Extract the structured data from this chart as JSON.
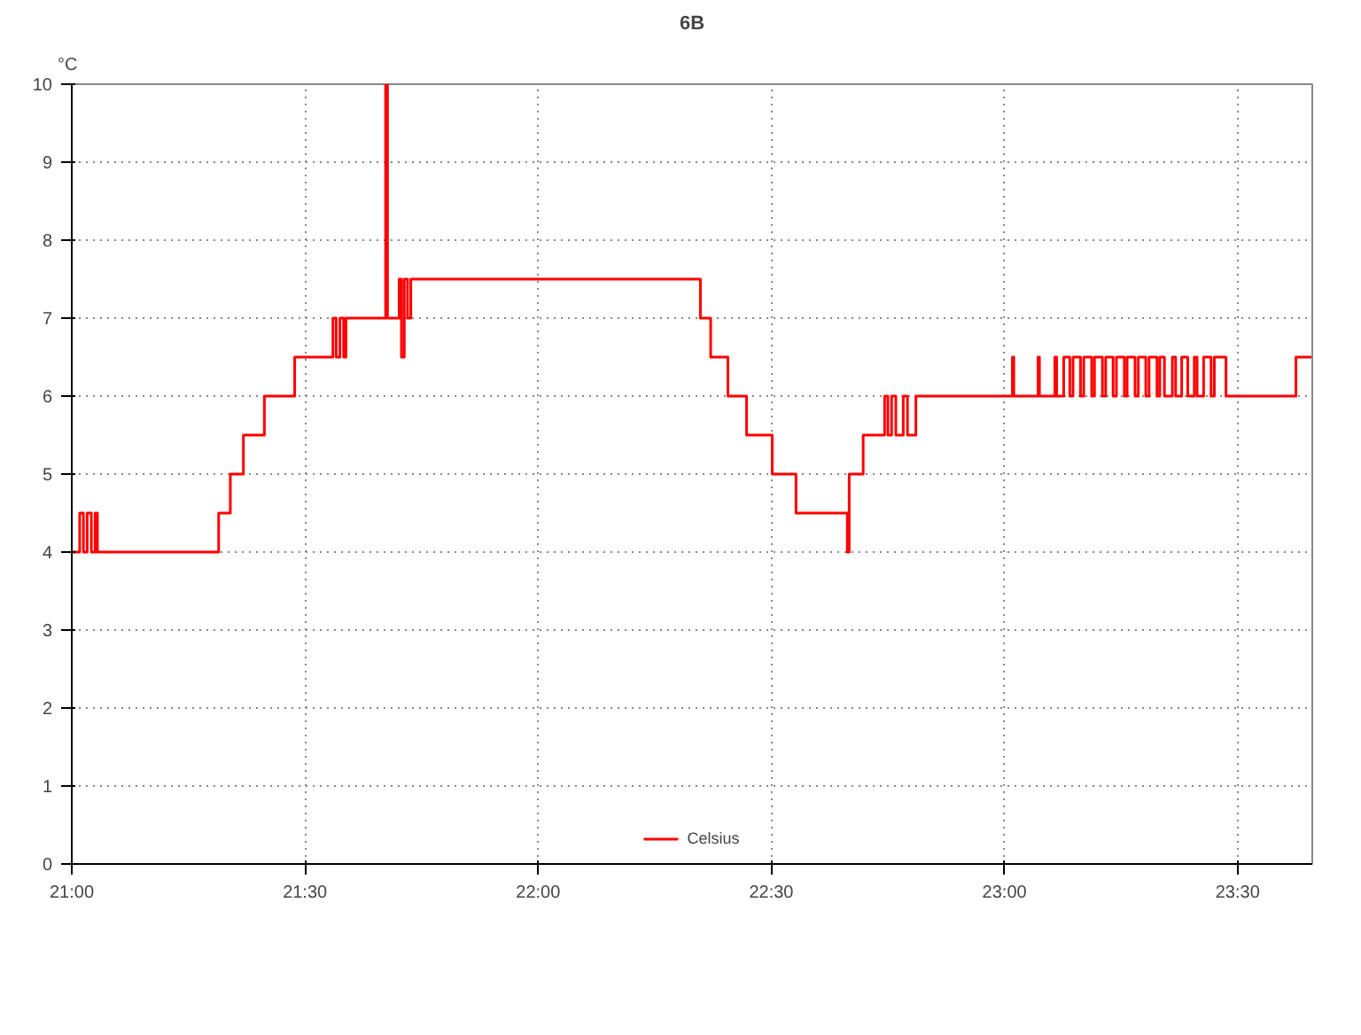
{
  "chart_data": {
    "type": "step",
    "title": "6B",
    "ylabel": "°C",
    "x": [
      21.0,
      21.017,
      21.025,
      21.033,
      21.042,
      21.05,
      21.055,
      21.315,
      21.34,
      21.368,
      21.413,
      21.478,
      21.56,
      21.567,
      21.575,
      21.583,
      21.588,
      21.673,
      21.677,
      21.702,
      21.707,
      21.713,
      21.72,
      21.727,
      22.348,
      22.37,
      22.407,
      22.447,
      22.502,
      22.553,
      22.663,
      22.667,
      22.697,
      22.743,
      22.75,
      22.758,
      22.767,
      22.783,
      22.792,
      22.81,
      23.017,
      23.02,
      23.072,
      23.075,
      23.108,
      23.112,
      23.127,
      23.14,
      23.147,
      23.163,
      23.17,
      23.187,
      23.193,
      23.21,
      23.217,
      23.233,
      23.24,
      23.257,
      23.263,
      23.28,
      23.287,
      23.303,
      23.31,
      23.327,
      23.333,
      23.343,
      23.36,
      23.367,
      23.38,
      23.393,
      23.407,
      23.413,
      23.427,
      23.443,
      23.45,
      23.475,
      23.625,
      23.658
    ],
    "series": [
      {
        "name": "Celsius",
        "color": "#ff0000",
        "values": [
          4,
          4.5,
          4,
          4.5,
          4,
          4.5,
          4,
          4.5,
          5,
          5.5,
          6,
          6.5,
          7,
          6.5,
          7,
          6.5,
          7,
          10,
          7,
          7.5,
          6.5,
          7.5,
          7,
          7.5,
          7,
          6.5,
          6,
          5.5,
          5,
          4.5,
          4,
          5,
          5.5,
          6,
          5.5,
          6,
          5.5,
          6,
          5.5,
          6,
          6.5,
          6,
          6.5,
          6,
          6.5,
          6,
          6.5,
          6,
          6.5,
          6,
          6.5,
          6,
          6.5,
          6,
          6.5,
          6,
          6.5,
          6,
          6.5,
          6,
          6.5,
          6,
          6.5,
          6,
          6.5,
          6,
          6.5,
          6,
          6.5,
          6,
          6.5,
          6,
          6.5,
          6,
          6.5,
          6,
          6.5,
          6.5
        ]
      }
    ],
    "xlim": [
      21.0,
      23.66
    ],
    "ylim": [
      0,
      10
    ],
    "xticks": [
      {
        "value": 21,
        "label": "21:00"
      },
      {
        "value": 21.5,
        "label": "21:30"
      },
      {
        "value": 22,
        "label": "22:00"
      },
      {
        "value": 22.5,
        "label": "22:30"
      },
      {
        "value": 23,
        "label": "23:00"
      },
      {
        "value": 23.5,
        "label": "23:30"
      }
    ],
    "yticks": [
      0,
      1,
      2,
      3,
      4,
      5,
      6,
      7,
      8,
      9,
      10
    ],
    "grid": true,
    "legend": "bottom",
    "line_style": "solid"
  }
}
